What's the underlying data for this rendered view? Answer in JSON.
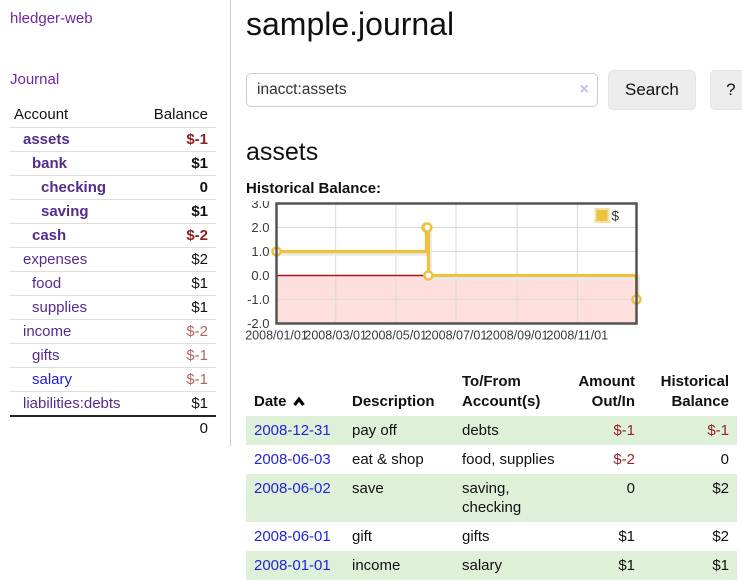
{
  "brand": "hledger-web",
  "sidebar": {
    "journal_link": "Journal",
    "accounts_table": {
      "headers": {
        "account": "Account",
        "balance": "Balance"
      },
      "rows": [
        {
          "name": "assets",
          "indent": 1,
          "bold": true,
          "balance": "$-1",
          "balance_class": "neg-strong"
        },
        {
          "name": "bank",
          "indent": 2,
          "bold": true,
          "balance": "$1",
          "balance_class": ""
        },
        {
          "name": "checking",
          "indent": 3,
          "bold": true,
          "balance": "0",
          "balance_class": ""
        },
        {
          "name": "saving",
          "indent": 3,
          "bold": true,
          "balance": "$1",
          "balance_class": ""
        },
        {
          "name": "cash",
          "indent": 2,
          "bold": true,
          "balance": "$-2",
          "balance_class": "neg-strong"
        },
        {
          "name": "expenses",
          "indent": 1,
          "bold": false,
          "balance": "$2",
          "balance_class": ""
        },
        {
          "name": "food",
          "indent": 2,
          "bold": false,
          "balance": "$1",
          "balance_class": ""
        },
        {
          "name": "supplies",
          "indent": 2,
          "bold": false,
          "balance": "$1",
          "balance_class": ""
        },
        {
          "name": "income",
          "indent": 1,
          "bold": false,
          "balance": "$-2",
          "balance_class": "neg"
        },
        {
          "name": "gifts",
          "indent": 2,
          "bold": false,
          "balance": "$-1",
          "balance_class": "neg"
        },
        {
          "name": "salary",
          "indent": 2,
          "bold": false,
          "blue": true,
          "balance": "$-1",
          "balance_class": "neg"
        },
        {
          "name": "liabilities:debts",
          "indent": 1,
          "bold": false,
          "balance": "$1",
          "balance_class": ""
        }
      ],
      "total": "0"
    }
  },
  "header": {
    "title": "sample.journal"
  },
  "search": {
    "value": "inacct:assets",
    "clear_icon": "×",
    "button_label": "Search",
    "help_label": "?"
  },
  "account_page": {
    "heading": "assets",
    "chart_label": "Historical Balance:"
  },
  "chart_data": {
    "type": "line",
    "title": "Historical Balance",
    "step": true,
    "series": [
      {
        "name": "$",
        "color": "#edc240",
        "points": [
          [
            "2008-01-01",
            1
          ],
          [
            "2008-06-01",
            2
          ],
          [
            "2008-06-02",
            2
          ],
          [
            "2008-06-03",
            0
          ],
          [
            "2008-12-31",
            -1
          ]
        ]
      }
    ],
    "x_ticks": [
      "2008/01/01",
      "2008/03/01",
      "2008/05/01",
      "2008/07/01",
      "2008/09/01",
      "2008/11/01"
    ],
    "y_ticks": [
      3.0,
      2.0,
      1.0,
      0.0,
      -1.0,
      -2.0
    ],
    "ylim": [
      -2,
      3
    ],
    "xlim": [
      "2008-01-01",
      "2008-12-31"
    ],
    "grid": true,
    "legend_position": "top-right",
    "negative_region_color": "#ffdede",
    "zero_line_color": "#a61616",
    "border_color": "#545454",
    "grid_color": "#d9d9d9"
  },
  "register": {
    "headers": {
      "date": "Date",
      "description": "Description",
      "accounts": "To/From Account(s)",
      "amount": "Amount Out/In",
      "balance": "Historical Balance"
    },
    "rows": [
      {
        "date": "2008-12-31",
        "description": "pay off",
        "accounts": "debts",
        "amount": "$-1",
        "balance": "$-1"
      },
      {
        "date": "2008-06-03",
        "description": "eat & shop",
        "accounts": "food, supplies",
        "amount": "$-2",
        "balance": "0"
      },
      {
        "date": "2008-06-02",
        "description": "save",
        "accounts": "saving, checking",
        "amount": "0",
        "balance": "$2"
      },
      {
        "date": "2008-06-01",
        "description": "gift",
        "accounts": "gifts",
        "amount": "$1",
        "balance": "$2"
      },
      {
        "date": "2008-01-01",
        "description": "income",
        "accounts": "salary",
        "amount": "$1",
        "balance": "$1"
      }
    ]
  },
  "colors": {
    "accent_purple": "#6f27a8",
    "account_link_purple": "#542c8c",
    "link_blue": "#2323d8",
    "negative_strong_red": "#8f1e1e",
    "negative_muted_rose": "#b06464",
    "table_negative_red": "#942424",
    "row_stripe_green": "#dff0d8",
    "chart_line_gold": "#edc240"
  }
}
